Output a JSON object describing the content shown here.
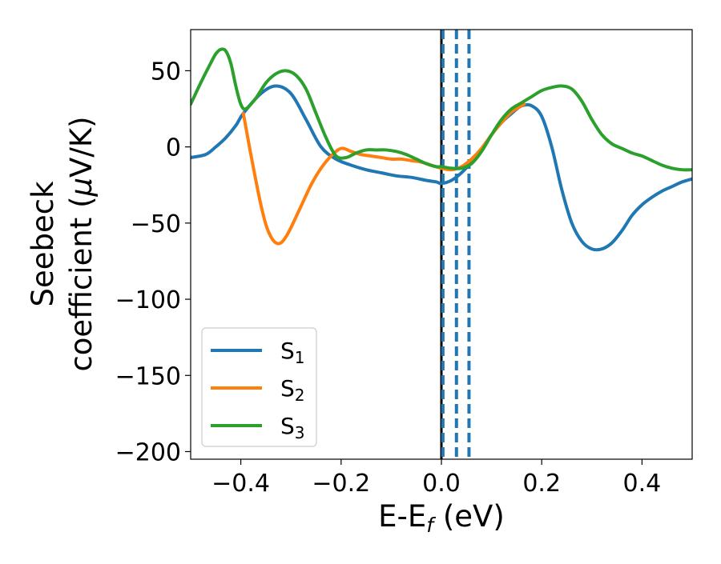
{
  "colors": {
    "s1": "#1f77b4",
    "s2": "#ff7f0e",
    "s3": "#2ca02c",
    "fermi_line": "#000000",
    "legend_border": "#cccccc"
  },
  "chart_data": {
    "type": "line",
    "title": "",
    "xlabel": "E-E",
    "xlabel_sub": "f",
    "xlabel_unit": " (eV)",
    "ylabel_line1": "Seebeck",
    "ylabel_line2_text": "coefficient  (",
    "ylabel_mu": "μ",
    "ylabel_unit": "V/K)",
    "xlim": [
      -0.5,
      0.5
    ],
    "ylim": [
      -205,
      77
    ],
    "grid": false,
    "legend_position": "lower-left",
    "xticks": [
      -0.4,
      -0.2,
      0.0,
      0.2,
      0.4
    ],
    "xtick_labels": [
      "−0.4",
      "−0.2",
      "0.0",
      "0.2",
      "0.4"
    ],
    "yticks": [
      50,
      0,
      -50,
      -100,
      -150,
      -200
    ],
    "ytick_labels": [
      "50",
      "0",
      "−50",
      "−100",
      "−150",
      "−200"
    ],
    "vertical_lines": [
      {
        "x": 0.0,
        "style": "solid",
        "color": "#000000"
      },
      {
        "x": 0.003,
        "style": "dashed",
        "color": "#1f77b4"
      },
      {
        "x": 0.03,
        "style": "dashed",
        "color": "#1f77b4"
      },
      {
        "x": 0.055,
        "style": "dashed",
        "color": "#1f77b4"
      }
    ],
    "series": [
      {
        "name": "S1",
        "label_main": "S",
        "label_sub": "1",
        "color": "#1f77b4",
        "x": [
          -0.5,
          -0.47,
          -0.45,
          -0.43,
          -0.41,
          -0.395,
          -0.36,
          -0.33,
          -0.3,
          -0.27,
          -0.24,
          -0.21,
          -0.18,
          -0.15,
          -0.12,
          -0.09,
          -0.06,
          -0.03,
          -0.01,
          0.0,
          0.02,
          0.04,
          0.06,
          0.08,
          0.1,
          0.12,
          0.14,
          0.16,
          0.18,
          0.2,
          0.22,
          0.24,
          0.26,
          0.28,
          0.3,
          0.32,
          0.34,
          0.36,
          0.38,
          0.4,
          0.42,
          0.44,
          0.46,
          0.48,
          0.5
        ],
        "y": [
          -7,
          -5,
          0,
          6,
          14,
          22,
          35,
          40,
          35,
          18,
          0,
          -8,
          -12,
          -15,
          -17,
          -19,
          -20,
          -22,
          -23,
          -24,
          -22,
          -17,
          -10,
          -2,
          8,
          16,
          22,
          27,
          27,
          20,
          0,
          -28,
          -50,
          -62,
          -67,
          -67,
          -63,
          -55,
          -45,
          -38,
          -33,
          -29,
          -26,
          -23,
          -21
        ]
      },
      {
        "name": "S2",
        "label_main": "S",
        "label_sub": "2",
        "color": "#ff7f0e",
        "x": [
          -0.395,
          -0.39,
          -0.38,
          -0.37,
          -0.36,
          -0.35,
          -0.34,
          -0.33,
          -0.32,
          -0.31,
          -0.3,
          -0.29,
          -0.28,
          -0.26,
          -0.24,
          -0.22,
          -0.2,
          -0.18,
          -0.16,
          -0.14,
          -0.12,
          -0.1,
          -0.08,
          -0.06,
          -0.04,
          -0.02,
          0.0,
          0.02,
          0.04,
          0.06,
          0.08,
          0.1,
          0.12,
          0.14,
          0.16,
          0.165
        ],
        "y": [
          22,
          13,
          -5,
          -22,
          -38,
          -51,
          -59,
          -63,
          -63,
          -59,
          -53,
          -46,
          -39,
          -25,
          -14,
          -6,
          -1,
          -3,
          -5,
          -6,
          -7,
          -8,
          -8,
          -9,
          -10,
          -12,
          -14,
          -15,
          -13,
          -8,
          -1,
          8,
          16,
          23,
          27,
          28
        ]
      },
      {
        "name": "S3",
        "label_main": "S",
        "label_sub": "3",
        "color": "#2ca02c",
        "x": [
          -0.5,
          -0.48,
          -0.46,
          -0.45,
          -0.44,
          -0.43,
          -0.42,
          -0.41,
          -0.4,
          -0.39,
          -0.37,
          -0.35,
          -0.33,
          -0.31,
          -0.29,
          -0.27,
          -0.25,
          -0.23,
          -0.21,
          -0.19,
          -0.17,
          -0.15,
          -0.13,
          -0.11,
          -0.09,
          -0.07,
          -0.05,
          -0.03,
          -0.01,
          0.0,
          0.02,
          0.04,
          0.06,
          0.08,
          0.1,
          0.12,
          0.14,
          0.16,
          0.18,
          0.2,
          0.22,
          0.24,
          0.26,
          0.28,
          0.3,
          0.32,
          0.34,
          0.36,
          0.38,
          0.4,
          0.42,
          0.44,
          0.46,
          0.48,
          0.5
        ],
        "y": [
          28,
          42,
          55,
          61,
          64,
          63,
          55,
          40,
          28,
          25,
          32,
          42,
          48,
          50,
          47,
          38,
          22,
          6,
          -6,
          -7,
          -4,
          -2,
          -2,
          -2,
          -3,
          -5,
          -8,
          -11,
          -13,
          -13,
          -14,
          -14,
          -11,
          -3,
          8,
          18,
          25,
          29,
          33,
          37,
          39,
          40,
          38,
          30,
          18,
          8,
          2,
          -1,
          -4,
          -6,
          -9,
          -12,
          -14,
          -15,
          -15
        ]
      }
    ]
  }
}
